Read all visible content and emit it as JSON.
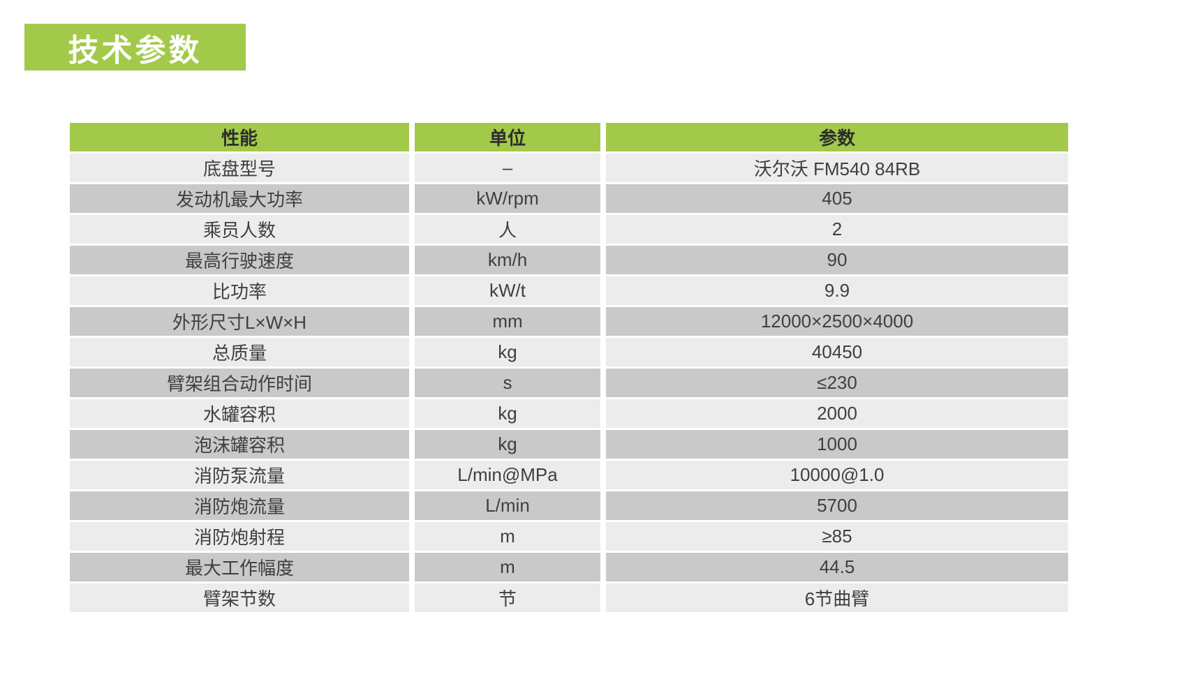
{
  "page": {
    "title_badge": "技术参数"
  },
  "colors": {
    "accent_green": "#a3c94a",
    "row_light": "#ececed",
    "row_dark": "#c9c9ca",
    "header_text": "#2d2d2d",
    "cell_text": "#3f3f3f"
  },
  "table": {
    "columns": {
      "performance": "性能",
      "unit": "单位",
      "parameter": "参数"
    },
    "rows": [
      {
        "name": "底盘型号",
        "unit": "–",
        "value": "沃尔沃 FM540 84RB"
      },
      {
        "name": "发动机最大功率",
        "unit": "kW/rpm",
        "value": "405"
      },
      {
        "name": "乘员人数",
        "unit": "人",
        "value": "2"
      },
      {
        "name": "最高行驶速度",
        "unit": "km/h",
        "value": "90"
      },
      {
        "name": "比功率",
        "unit": "kW/t",
        "value": "9.9"
      },
      {
        "name": "外形尺寸L×W×H",
        "unit": "mm",
        "value": "12000×2500×4000"
      },
      {
        "name": "总质量",
        "unit": "kg",
        "value": "40450"
      },
      {
        "name": "臂架组合动作时间",
        "unit": "s",
        "value": "≤230"
      },
      {
        "name": "水罐容积",
        "unit": "kg",
        "value": "2000"
      },
      {
        "name": "泡沫罐容积",
        "unit": "kg",
        "value": "1000"
      },
      {
        "name": "消防泵流量",
        "unit": "L/min@MPa",
        "value": "10000@1.0"
      },
      {
        "name": "消防炮流量",
        "unit": "L/min",
        "value": "5700"
      },
      {
        "name": "消防炮射程",
        "unit": "m",
        "value": "≥85"
      },
      {
        "name": "最大工作幅度",
        "unit": "m",
        "value": "44.5"
      },
      {
        "name": "臂架节数",
        "unit": "节",
        "value": "6节曲臂"
      }
    ]
  }
}
